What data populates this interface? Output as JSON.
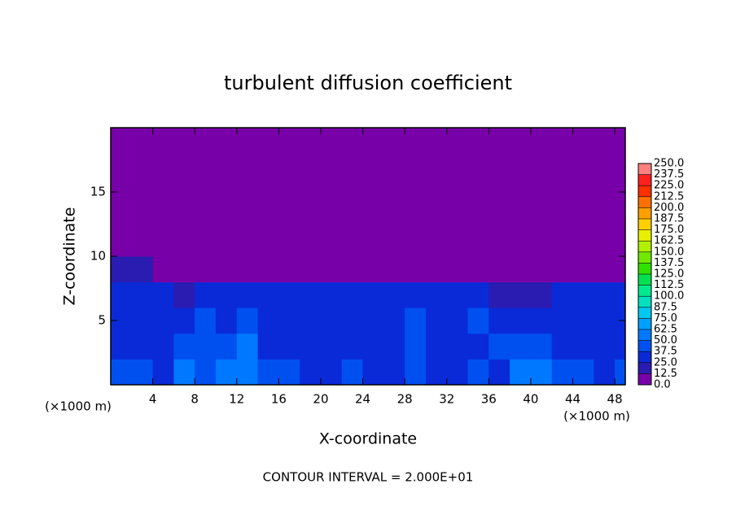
{
  "chart_data": {
    "type": "heatmap",
    "title": "turbulent diffusion coefficient",
    "xlabel": "X-coordinate",
    "ylabel": "Z-coordinate",
    "x_unit": "(×1000 m)",
    "y_unit": "(×1000 m)",
    "footer": "CONTOUR INTERVAL = 2.000E+01",
    "xlim": [
      0,
      49
    ],
    "ylim": [
      0,
      20
    ],
    "xticks": [
      4,
      8,
      12,
      16,
      20,
      24,
      28,
      32,
      36,
      40,
      44,
      48
    ],
    "yticks": [
      5,
      10,
      15
    ],
    "x": [
      1,
      3,
      5,
      7,
      9,
      11,
      13,
      15,
      17,
      19,
      21,
      23,
      25,
      27,
      29,
      31,
      33,
      35,
      37,
      39,
      41,
      43,
      45,
      47,
      49
    ],
    "y": [
      1,
      3,
      5,
      7,
      9,
      11,
      13,
      15,
      17,
      19
    ],
    "z": [
      [
        40,
        45,
        35,
        50,
        45,
        55,
        60,
        40,
        45,
        30,
        35,
        40,
        30,
        25,
        45,
        35,
        30,
        40,
        35,
        50,
        55,
        45,
        40,
        35,
        45
      ],
      [
        35,
        30,
        30,
        40,
        45,
        45,
        50,
        35,
        30,
        25,
        30,
        30,
        25,
        30,
        40,
        35,
        30,
        35,
        45,
        40,
        40,
        35,
        30,
        30,
        35
      ],
      [
        30,
        35,
        30,
        35,
        40,
        35,
        40,
        30,
        25,
        25,
        35,
        30,
        25,
        30,
        40,
        35,
        35,
        40,
        30,
        35,
        30,
        30,
        25,
        35,
        30
      ],
      [
        25,
        30,
        30,
        20,
        25,
        30,
        25,
        35,
        30,
        30,
        35,
        30,
        30,
        25,
        30,
        25,
        30,
        30,
        20,
        15,
        15,
        25,
        30,
        30,
        25
      ],
      [
        15,
        15,
        0,
        0,
        0,
        0,
        0,
        0,
        0,
        0,
        0,
        10,
        10,
        0,
        0,
        0,
        0,
        0,
        0,
        0,
        0,
        0,
        0,
        0,
        10
      ],
      [
        0,
        0,
        0,
        0,
        0,
        0,
        0,
        0,
        0,
        0,
        0,
        0,
        0,
        0,
        0,
        0,
        0,
        0,
        0,
        0,
        0,
        0,
        0,
        0,
        0
      ],
      [
        0,
        0,
        0,
        0,
        0,
        0,
        0,
        0,
        0,
        0,
        0,
        0,
        0,
        0,
        0,
        0,
        0,
        0,
        0,
        0,
        0,
        0,
        0,
        0,
        0
      ],
      [
        0,
        0,
        0,
        0,
        0,
        0,
        0,
        0,
        0,
        0,
        0,
        0,
        0,
        0,
        0,
        0,
        0,
        0,
        0,
        0,
        0,
        0,
        0,
        0,
        0
      ],
      [
        0,
        0,
        0,
        0,
        0,
        0,
        0,
        0,
        0,
        0,
        0,
        0,
        0,
        0,
        0,
        0,
        0,
        0,
        0,
        0,
        0,
        0,
        0,
        0,
        0
      ],
      [
        0,
        0,
        0,
        0,
        0,
        0,
        0,
        0,
        0,
        0,
        0,
        0,
        0,
        0,
        0,
        0,
        0,
        0,
        0,
        0,
        0,
        0,
        0,
        0,
        0
      ]
    ],
    "colorbar_ticks": [
      {
        "value": 0,
        "label": "0.0"
      },
      12.5,
      {
        "value": 25,
        "label": "25.0"
      },
      37.5,
      {
        "value": 50,
        "label": "50.0"
      },
      62.5,
      {
        "value": 75,
        "label": "75.0"
      },
      87.5,
      {
        "value": 100,
        "label": "100.0"
      },
      112.5,
      {
        "value": 125,
        "label": "125.0"
      },
      137.5,
      {
        "value": 150,
        "label": "150.0"
      },
      162.5,
      {
        "value": 175,
        "label": "175.0"
      },
      187.5,
      {
        "value": 200,
        "label": "200.0"
      },
      212.5,
      {
        "value": 225,
        "label": "225.0"
      },
      237.5,
      {
        "value": 250,
        "label": "250.0"
      }
    ],
    "colors": [
      "#7800a8",
      "#2a1cb0",
      "#0a2ad8",
      "#0050f0",
      "#0078ff",
      "#00a0ff",
      "#00c8f0",
      "#00e0c0",
      "#00e890",
      "#00e050",
      "#30e000",
      "#70e800",
      "#b0f000",
      "#e8f000",
      "#ffd000",
      "#ffa000",
      "#ff7000",
      "#ff3000",
      "#ff2020",
      "#ff8080"
    ]
  }
}
